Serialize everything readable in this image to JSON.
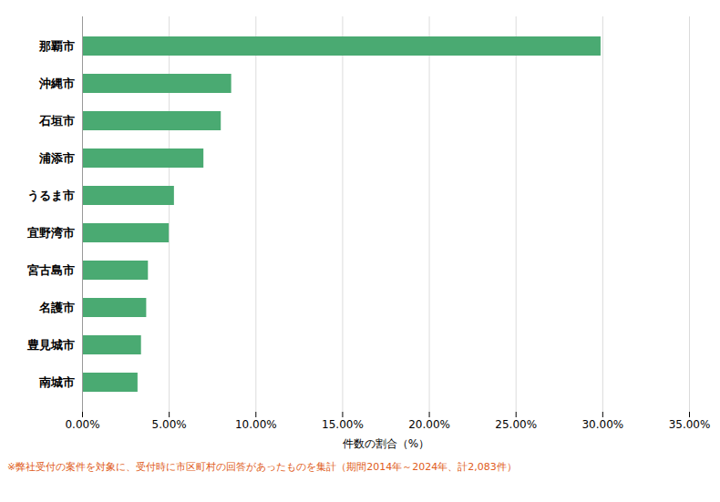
{
  "chart_data": {
    "type": "bar",
    "orientation": "horizontal",
    "categories": [
      "那覇市",
      "沖縄市",
      "石垣市",
      "浦添市",
      "うるま市",
      "宜野湾市",
      "宮古島市",
      "名護市",
      "豊見城市",
      "南城市"
    ],
    "values": [
      29.9,
      8.6,
      8.0,
      7.0,
      5.3,
      5.0,
      3.8,
      3.7,
      3.4,
      3.2
    ],
    "color": "#4aaa72",
    "xlabel": "件数の割合（%）",
    "xlim": [
      0,
      35
    ],
    "xticks": [
      {
        "value": 0,
        "label": "0.00%"
      },
      {
        "value": 5,
        "label": "5.00%"
      },
      {
        "value": 10,
        "label": "10.00%"
      },
      {
        "value": 15,
        "label": "15.00%"
      },
      {
        "value": 20,
        "label": "20.00%"
      },
      {
        "value": 25,
        "label": "25.00%"
      },
      {
        "value": 30,
        "label": "30.00%"
      },
      {
        "value": 35,
        "label": "35.00%"
      }
    ],
    "grid": true,
    "annotations": [
      {
        "text": "※弊社受付の案件を対象に、受付時に市区町村の回答があったものを集計（期間2014年～2024年、計2,083件）",
        "color": "#e05c20"
      }
    ]
  }
}
